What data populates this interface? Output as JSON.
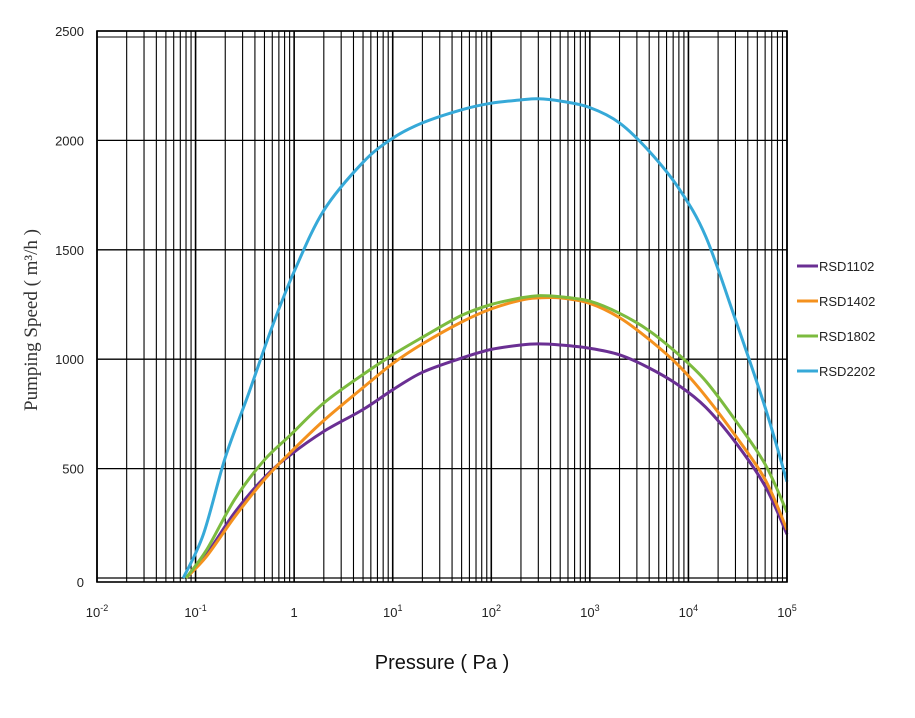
{
  "chart_data": {
    "type": "line",
    "xlabel": "Pressure ( Pa )",
    "ylabel": "Pumping Speed ( m³/h )",
    "xscale": "log",
    "xlim": [
      0.01,
      100000
    ],
    "ylim": [
      0,
      2500
    ],
    "grid": true,
    "legend_placement": "right",
    "x_tick_labels": [
      {
        "base": "10",
        "exp": "-2",
        "value": 0.01
      },
      {
        "base": "10",
        "exp": "-1",
        "value": 0.1
      },
      {
        "base": "1",
        "exp": "",
        "value": 1
      },
      {
        "base": "10",
        "exp": "1",
        "value": 10
      },
      {
        "base": "10",
        "exp": "2",
        "value": 100
      },
      {
        "base": "10",
        "exp": "3",
        "value": 1000
      },
      {
        "base": "10",
        "exp": "4",
        "value": 10000
      },
      {
        "base": "10",
        "exp": "5",
        "value": 100000
      }
    ],
    "y_ticks": [
      0,
      500,
      1000,
      1500,
      2000,
      2500
    ],
    "series": [
      {
        "name": "RSD1102",
        "color": "#6a2f93",
        "points": [
          [
            0.08,
            0
          ],
          [
            0.13,
            110
          ],
          [
            0.25,
            300
          ],
          [
            0.5,
            460
          ],
          [
            0.9,
            560
          ],
          [
            2,
            670
          ],
          [
            5,
            770
          ],
          [
            10,
            860
          ],
          [
            20,
            940
          ],
          [
            50,
            1005
          ],
          [
            100,
            1045
          ],
          [
            200,
            1065
          ],
          [
            300,
            1070
          ],
          [
            500,
            1065
          ],
          [
            1000,
            1050
          ],
          [
            2000,
            1020
          ],
          [
            4000,
            960
          ],
          [
            8000,
            880
          ],
          [
            15000,
            780
          ],
          [
            30000,
            620
          ],
          [
            60000,
            420
          ],
          [
            100000,
            200
          ]
        ]
      },
      {
        "name": "RSD1402",
        "color": "#f4911e",
        "points": [
          [
            0.08,
            0
          ],
          [
            0.13,
            100
          ],
          [
            0.25,
            280
          ],
          [
            0.5,
            450
          ],
          [
            0.9,
            570
          ],
          [
            2,
            720
          ],
          [
            5,
            870
          ],
          [
            10,
            980
          ],
          [
            20,
            1070
          ],
          [
            50,
            1170
          ],
          [
            100,
            1230
          ],
          [
            200,
            1270
          ],
          [
            300,
            1280
          ],
          [
            500,
            1280
          ],
          [
            1000,
            1255
          ],
          [
            2000,
            1190
          ],
          [
            4000,
            1090
          ],
          [
            8000,
            970
          ],
          [
            15000,
            830
          ],
          [
            30000,
            650
          ],
          [
            60000,
            450
          ],
          [
            100000,
            220
          ]
        ]
      },
      {
        "name": "RSD1802",
        "color": "#7cbb3f",
        "points": [
          [
            0.08,
            0
          ],
          [
            0.13,
            130
          ],
          [
            0.25,
            360
          ],
          [
            0.5,
            540
          ],
          [
            0.9,
            650
          ],
          [
            2,
            800
          ],
          [
            5,
            930
          ],
          [
            10,
            1020
          ],
          [
            20,
            1100
          ],
          [
            50,
            1200
          ],
          [
            100,
            1250
          ],
          [
            200,
            1280
          ],
          [
            300,
            1290
          ],
          [
            500,
            1285
          ],
          [
            1000,
            1265
          ],
          [
            2000,
            1210
          ],
          [
            4000,
            1130
          ],
          [
            8000,
            1020
          ],
          [
            15000,
            900
          ],
          [
            30000,
            720
          ],
          [
            60000,
            520
          ],
          [
            100000,
            300
          ]
        ]
      },
      {
        "name": "RSD2202",
        "color": "#36a9d8",
        "points": [
          [
            0.075,
            0
          ],
          [
            0.12,
            200
          ],
          [
            0.2,
            550
          ],
          [
            0.35,
            850
          ],
          [
            0.6,
            1150
          ],
          [
            1,
            1400
          ],
          [
            2,
            1680
          ],
          [
            5,
            1900
          ],
          [
            10,
            2010
          ],
          [
            20,
            2080
          ],
          [
            50,
            2140
          ],
          [
            100,
            2170
          ],
          [
            200,
            2185
          ],
          [
            300,
            2190
          ],
          [
            500,
            2180
          ],
          [
            1000,
            2150
          ],
          [
            2000,
            2080
          ],
          [
            4000,
            1950
          ],
          [
            8000,
            1780
          ],
          [
            15000,
            1560
          ],
          [
            30000,
            1180
          ],
          [
            60000,
            780
          ],
          [
            100000,
            440
          ]
        ]
      }
    ]
  }
}
